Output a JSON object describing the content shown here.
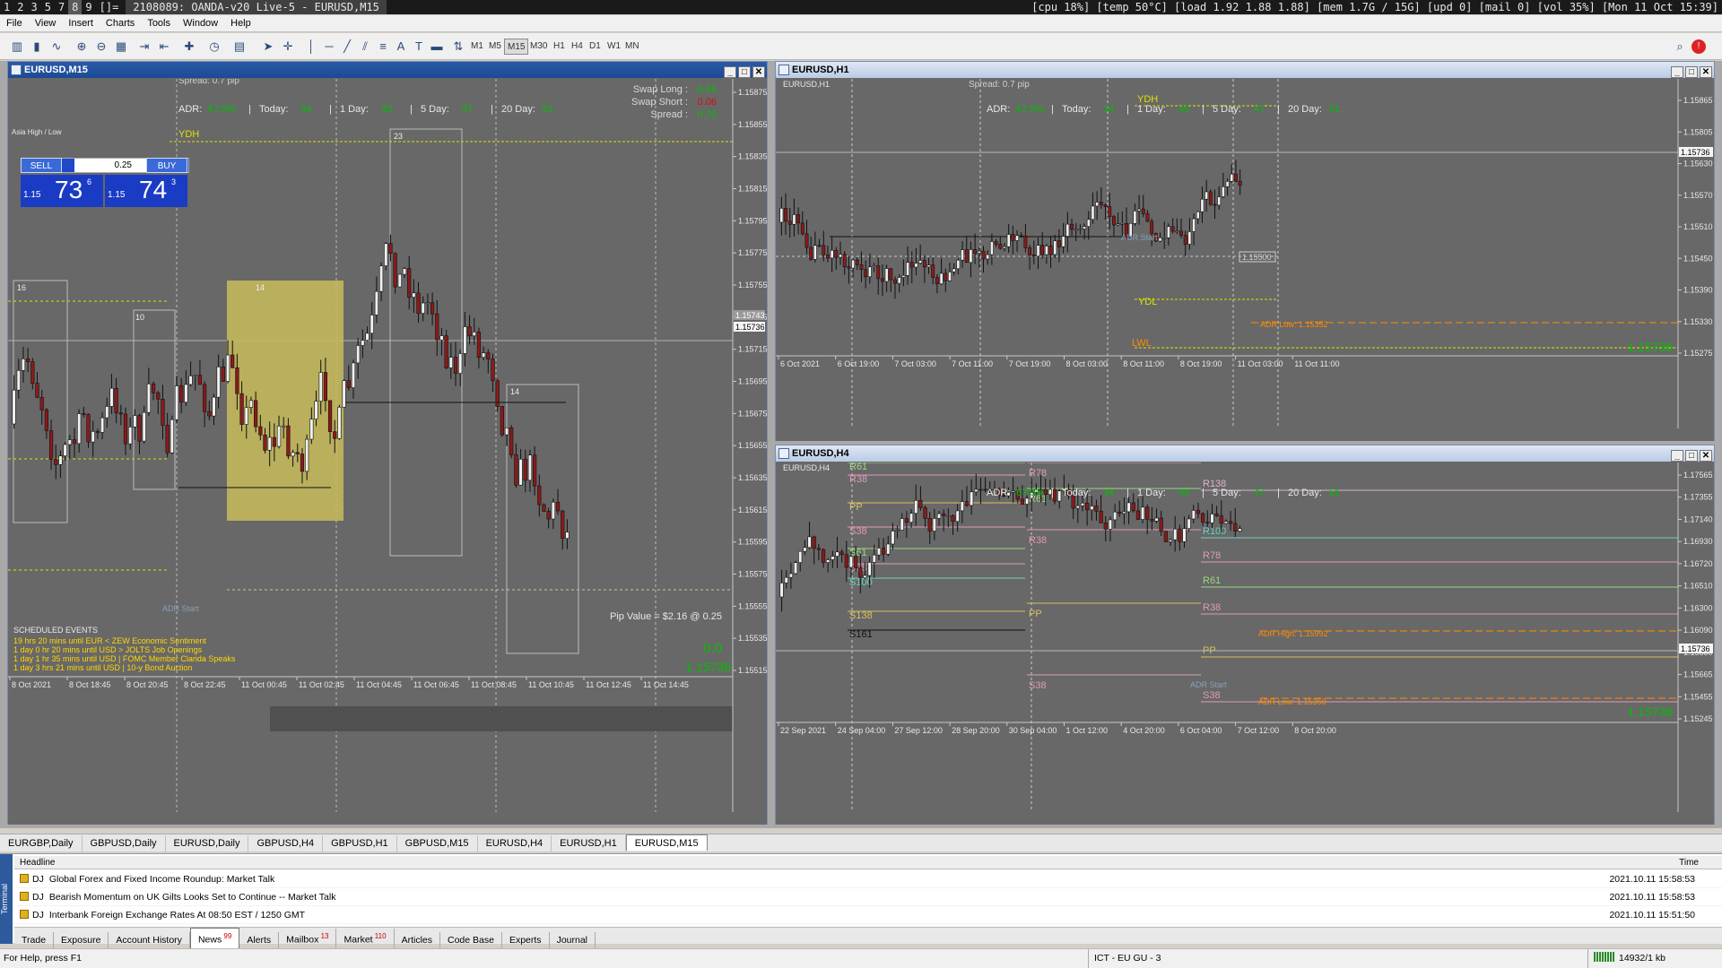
{
  "topbar": {
    "workspaces": [
      "1",
      "2",
      "3",
      "5",
      "7",
      "8",
      "9",
      "[]="
    ],
    "active_workspace": "8",
    "title": "2108089: OANDA-v20 Live-5 - EURUSD,M15",
    "status": "[cpu 18%] [temp 50°C] [load 1.92 1.88 1.88] [mem 1.7G / 15G] [upd 0] [mail 0] [vol 35%] [Mon 11 Oct 15:39]"
  },
  "menu": [
    "File",
    "View",
    "Insert",
    "Charts",
    "Tools",
    "Window",
    "Help"
  ],
  "toolbar": {
    "timeframes": [
      "M1",
      "M5",
      "M15",
      "M30",
      "H1",
      "H4",
      "D1",
      "W1",
      "MN"
    ],
    "selected_timeframe": "M15"
  },
  "windows": {
    "m15": {
      "title": "EURUSD,M15",
      "symbol_label": "EURUSD,M15",
      "spread_label": "Spread: 0.7 pip",
      "adr": {
        "adr_label": "ADR:",
        "adr": "67.9%",
        "today_label": "Today:",
        "today": "34",
        "day1_label": "1 Day:",
        "day1": "45",
        "day5_label": "5 Day:",
        "day5": "47",
        "day20_label": "20 Day:",
        "day20": "51"
      },
      "swaps": {
        "long_label": "Swap Long :",
        "long": "-0.55",
        "short_label": "Swap Short :",
        "short": "0.06",
        "spread_label": "Spread :",
        "spread": "0.70"
      },
      "trade": {
        "sell": "SELL",
        "buy": "BUY",
        "lot": "0.25",
        "sell_prefix": "1.15",
        "sell_big": "73",
        "sell_frac": "6",
        "buy_prefix": "1.15",
        "buy_big": "74",
        "buy_frac": "3"
      },
      "asia_label": "Asia High / Low",
      "ydh_label": "YDH",
      "adr_start_label": "ADR Start",
      "box_labels": [
        "16",
        "10",
        "14",
        "23",
        "14"
      ],
      "scheduled_title": "SCHEDULED EVENTS",
      "events": [
        "19 hrs 20 mins until EUR  <  ZEW Economic Sentiment",
        "1 day 0 hr 20 mins until USD  >  JOLTS Job Openings",
        "1 day 1 hr 35 mins until USD  |  FOMC Member Clarida Speaks",
        "1 day 3 hrs 21 mins until USD  |  10-y Bond Auction"
      ],
      "pip_value": "Pip Value = $2.16 @ 0.25",
      "pnl": "0.0",
      "price_now": "1.15736",
      "price_axis": [
        "1.15875",
        "1.15855",
        "1.15835",
        "1.15815",
        "1.15795",
        "1.15775",
        "1.15755",
        "1.15735",
        "1.15715",
        "1.15695",
        "1.15675",
        "1.15655",
        "1.15635",
        "1.15615",
        "1.15595",
        "1.15575",
        "1.15555",
        "1.15535",
        "1.15515"
      ],
      "price_tags": [
        "1.15743",
        "1.15736"
      ],
      "time_axis": [
        "8 Oct 2021",
        "8 Oct 18:45",
        "8 Oct 20:45",
        "8 Oct 22:45",
        "11 Oct 00:45",
        "11 Oct 02:45",
        "11 Oct 04:45",
        "11 Oct 06:45",
        "11 Oct 08:45",
        "11 Oct 10:45",
        "11 Oct 12:45",
        "11 Oct 14:45"
      ]
    },
    "h1": {
      "title": "EURUSD,H1",
      "symbol_label": "EURUSD,H1",
      "spread_label": "Spread: 0.7 pip",
      "adr": {
        "adr_label": "ADR:",
        "adr": "67.9%",
        "today_label": "Today:",
        "today": "34",
        "day1_label": "1 Day:",
        "day1": "45",
        "day5_label": "5 Day:",
        "day5": "47",
        "day20_label": "20 Day:",
        "day20": "51"
      },
      "labels": {
        "ydh": "YDH",
        "ydl": "YDL",
        "lwl": "LWL",
        "adr_start": "ADR Start",
        "adr_low": "ADR Low: 1.15352",
        "level_tag": "1.15500"
      },
      "price_now": "1.15736",
      "price_axis": [
        "1.15865",
        "1.15805",
        "1.15630",
        "1.15570",
        "1.15510",
        "1.15450",
        "1.15390",
        "1.15330",
        "1.15275"
      ],
      "price_tag": "1.15736",
      "time_axis": [
        "6 Oct 2021",
        "6 Oct 19:00",
        "7 Oct 03:00",
        "7 Oct 11:00",
        "7 Oct 19:00",
        "8 Oct 03:00",
        "8 Oct 11:00",
        "8 Oct 19:00",
        "11 Oct 03:00",
        "11 Oct 11:00"
      ]
    },
    "h4": {
      "title": "EURUSD,H4",
      "symbol_label": "EURUSD,H4",
      "adr": {
        "adr_label": "ADR:",
        "adr": "67.9%",
        "today_label": "Today:",
        "today": "34",
        "day1_label": "1 Day:",
        "day1": "45",
        "day5_label": "5 Day:",
        "day5": "47",
        "day20_label": "20 Day:",
        "day20": "51"
      },
      "pivots_left": [
        "R61",
        "R38",
        "PP",
        "S38",
        "S61",
        "S78",
        "S100",
        "S138",
        "S161"
      ],
      "pivots_mid": [
        "R78",
        "R61",
        "R38",
        "PP",
        "S38"
      ],
      "pivots_right": [
        "R161",
        "R138",
        "R100",
        "R78",
        "R61",
        "R38",
        "PP",
        "S38"
      ],
      "labels": {
        "adr_high": "ADR High: 1.15992",
        "adr_low": "ADR Low: 1.15350",
        "adr_start": "ADR Start"
      },
      "price_now": "1.15736",
      "price_axis": [
        "1.17565",
        "1.17355",
        "1.17140",
        "1.16930",
        "1.16720",
        "1.16510",
        "1.16300",
        "1.16090",
        "1.15880",
        "1.15665",
        "1.15455",
        "1.15245"
      ],
      "price_tag": "1.15736",
      "time_axis": [
        "22 Sep 2021",
        "24 Sep 04:00",
        "27 Sep 12:00",
        "28 Sep 20:00",
        "30 Sep 04:00",
        "1 Oct 12:00",
        "4 Oct 20:00",
        "6 Oct 04:00",
        "7 Oct 12:00",
        "8 Oct 20:00"
      ]
    }
  },
  "chart_tabs": [
    "EURGBP,Daily",
    "GBPUSD,Daily",
    "EURUSD,Daily",
    "GBPUSD,H4",
    "GBPUSD,H1",
    "GBPUSD,M15",
    "EURUSD,H4",
    "EURUSD,H1",
    "EURUSD,M15"
  ],
  "active_chart_tab": "EURUSD,M15",
  "terminal": {
    "side_label": "Terminal",
    "headline_col": "Headline",
    "time_col": "Time",
    "news": [
      {
        "src": "DJ",
        "headline": "Global Forex and Fixed Income Roundup: Market Talk",
        "time": "2021.10.11 15:58:53"
      },
      {
        "src": "DJ",
        "headline": "Bearish Momentum on UK Gilts Looks Set to Continue -- Market Talk",
        "time": "2021.10.11 15:58:53"
      },
      {
        "src": "DJ",
        "headline": "Interbank Foreign Exchange Rates At 08:50 EST / 1250 GMT",
        "time": "2021.10.11 15:51:50"
      }
    ],
    "tabs": [
      {
        "label": "Trade",
        "badge": ""
      },
      {
        "label": "Exposure",
        "badge": ""
      },
      {
        "label": "Account History",
        "badge": ""
      },
      {
        "label": "News",
        "badge": "99"
      },
      {
        "label": "Alerts",
        "badge": ""
      },
      {
        "label": "Mailbox",
        "badge": "13"
      },
      {
        "label": "Market",
        "badge": "110"
      },
      {
        "label": "Articles",
        "badge": ""
      },
      {
        "label": "Code Base",
        "badge": ""
      },
      {
        "label": "Experts",
        "badge": ""
      },
      {
        "label": "Journal",
        "badge": ""
      }
    ],
    "selected_tab": "News"
  },
  "status": {
    "help": "For Help, press F1",
    "profile": "ICT - EU GU - 3",
    "traffic": "14932/1 kb"
  },
  "colors": {
    "chart_bg": "#686868",
    "bull": "#f0f0f0",
    "bear": "#8b1a1a",
    "adr_green": "#00c000",
    "ydh_yellow": "#e0e000",
    "orange": "#ff8c00",
    "event_yellow": "#ffd700",
    "box_yellow": "#c8bc5c"
  }
}
